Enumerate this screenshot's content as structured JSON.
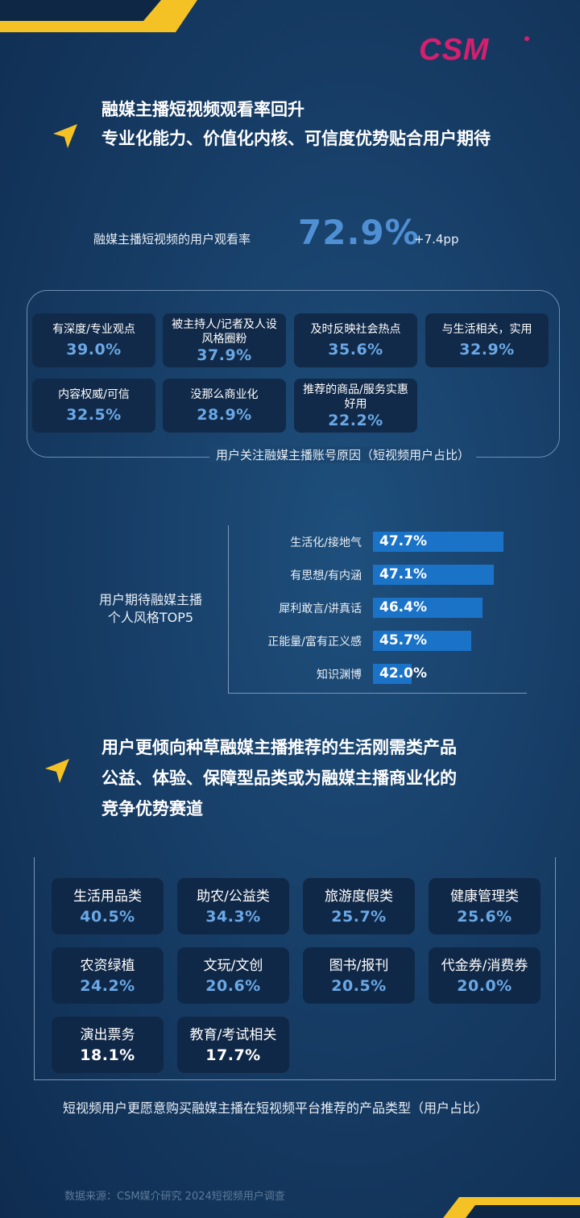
{
  "brand": {
    "logo_text": "CSM",
    "logo_color": "#d61f6e",
    "accent_yellow": "#f5c226"
  },
  "section1": {
    "heading_line1": "融媒主播短视频观看率回升",
    "heading_line2": "专业化能力、价值化内核、可信度优势贴合用户期待"
  },
  "viewing_rate": {
    "label": "融媒主播短视频的用户观看率",
    "value": "72.9%",
    "delta": "+7.4pp"
  },
  "follow_reasons": {
    "caption": "用户关注融媒主播账号原因（短视频用户占比）",
    "items": [
      {
        "label": "有深度/专业观点",
        "value": "39.0%"
      },
      {
        "label": "被主持人/记者及人设风格圈粉",
        "value": "37.9%"
      },
      {
        "label": "及时反映社会热点",
        "value": "35.6%"
      },
      {
        "label": "与生活相关，实用",
        "value": "32.9%"
      },
      {
        "label": "内容权威/可信",
        "value": "32.5%"
      },
      {
        "label": "没那么商业化",
        "value": "28.9%"
      },
      {
        "label": "推荐的商品/服务实惠好用",
        "value": "22.2%"
      }
    ]
  },
  "style_top5": {
    "label_line1": "用户期待融媒主播",
    "label_line2": "个人风格TOP5"
  },
  "chart_data": {
    "type": "bar",
    "orientation": "horizontal",
    "categories": [
      "生活化/接地气",
      "有思想/有内涵",
      "犀利敢言/讲真话",
      "正能量/富有正义感",
      "知识渊博"
    ],
    "values": [
      47.7,
      47.1,
      46.4,
      45.7,
      42.0
    ],
    "value_labels": [
      "47.7%",
      "47.1%",
      "46.4%",
      "45.7%",
      "42.0%"
    ],
    "title": "",
    "bar_color": "#1b73c7",
    "xlim": [
      40,
      50
    ]
  },
  "section2": {
    "heading_line1": "用户更倾向种草融媒主播推荐的生活刚需类产品",
    "heading_line2": "公益、体验、保障型品类或为融媒主播商业化的",
    "heading_line3": "竞争优势赛道"
  },
  "product_types": {
    "caption": "短视频用户更愿意购买融媒主播在短视频平台推荐的产品类型（用户占比）",
    "items": [
      {
        "label": "生活用品类",
        "value": "40.5%"
      },
      {
        "label": "助农/公益类",
        "value": "34.3%"
      },
      {
        "label": "旅游度假类",
        "value": "25.7%"
      },
      {
        "label": "健康管理类",
        "value": "25.6%"
      },
      {
        "label": "农资绿植",
        "value": "24.2%"
      },
      {
        "label": "文玩/文创",
        "value": "20.6%"
      },
      {
        "label": "图书/报刊",
        "value": "20.5%"
      },
      {
        "label": "代金券/消费券",
        "value": "20.0%"
      },
      {
        "label": "演出票务",
        "value": "18.1%"
      },
      {
        "label": "教育/考试相关",
        "value": "17.7%"
      }
    ]
  },
  "source": "数据来源：CSM媒介研究 2024短视频用户调查"
}
